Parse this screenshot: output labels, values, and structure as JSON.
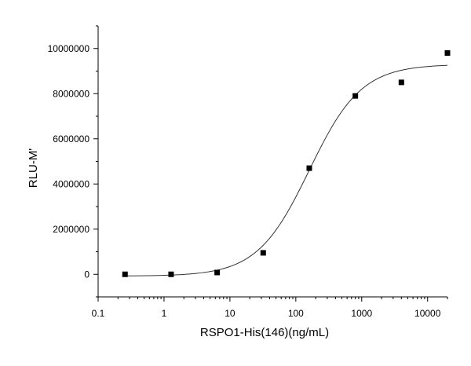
{
  "chart_data": {
    "type": "scatter",
    "title": "",
    "xlabel": "RSPO1-His(146)(ng/mL)",
    "ylabel": "RLU-M'",
    "x_scale": "log",
    "xlim": [
      0.1,
      20000
    ],
    "ylim": [
      -1000000,
      11000000
    ],
    "x_ticks": [
      {
        "value": 0.1,
        "label": "0.1"
      },
      {
        "value": 1,
        "label": "1"
      },
      {
        "value": 10,
        "label": "10"
      },
      {
        "value": 100,
        "label": "100"
      },
      {
        "value": 1000,
        "label": "1000"
      },
      {
        "value": 10000,
        "label": "10000"
      }
    ],
    "y_ticks": [
      {
        "value": 0,
        "label": "0"
      },
      {
        "value": 2000000,
        "label": "2000000"
      },
      {
        "value": 4000000,
        "label": "4000000"
      },
      {
        "value": 6000000,
        "label": "6000000"
      },
      {
        "value": 8000000,
        "label": "8000000"
      },
      {
        "value": 10000000,
        "label": "10000000"
      }
    ],
    "grid": false,
    "legend": "none",
    "marker": "square",
    "marker_color": "#000000",
    "line_color": "#333333",
    "series": [
      {
        "kind": "points",
        "x": [
          0.256,
          1.28,
          6.4,
          32,
          160,
          800,
          4000,
          20000
        ],
        "y": [
          0,
          0,
          80000,
          950000,
          4700000,
          7900000,
          8500000,
          9800000
        ]
      },
      {
        "kind": "fit",
        "model": "4PL",
        "bottom": -80000,
        "top": 9300000,
        "ec50": 160,
        "hill": 1.1,
        "x_from": 0.256,
        "x_to": 20000
      }
    ]
  }
}
